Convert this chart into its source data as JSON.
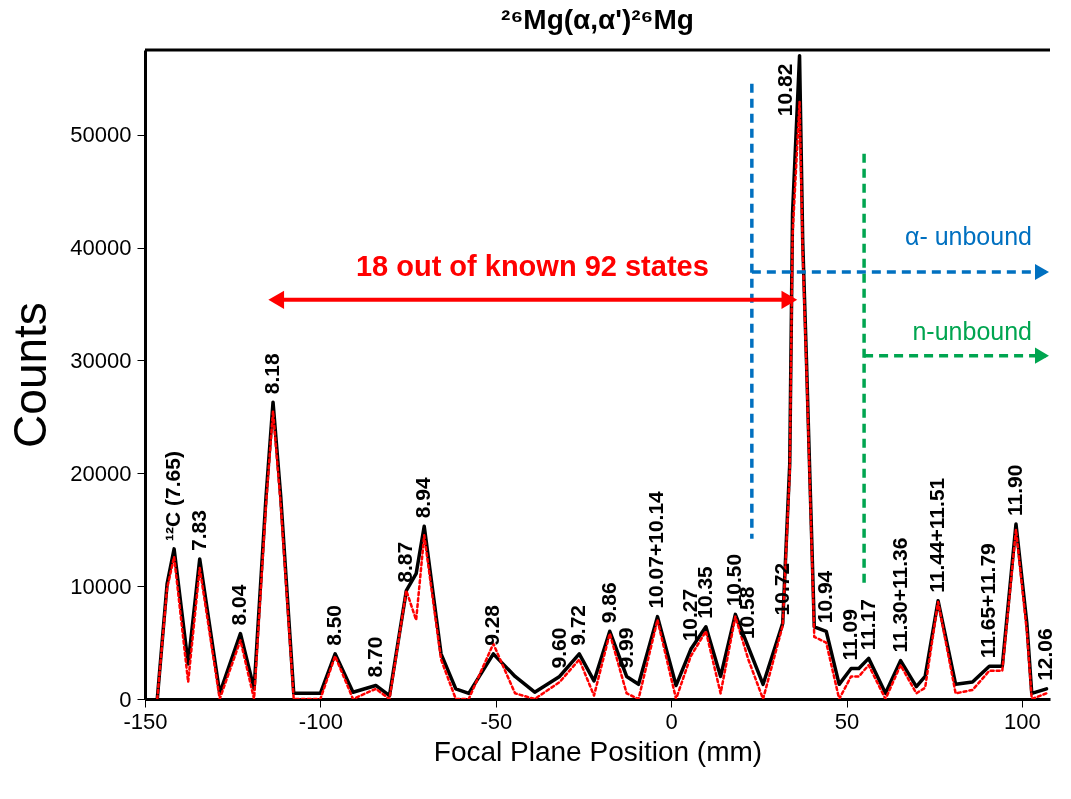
{
  "chart_data": {
    "type": "line",
    "title": "²⁶Mg(α,α')²⁶Mg",
    "xlabel": "Focal Plane Position (mm)",
    "ylabel": "Counts",
    "xlim": [
      -150,
      108
    ],
    "xticks": [
      -150,
      -100,
      -50,
      0,
      50,
      100
    ],
    "ylim": [
      0,
      57500
    ],
    "yticks": [
      0,
      10000,
      20000,
      30000,
      40000,
      50000
    ],
    "grid": false,
    "series": [
      {
        "color": "#000000",
        "line_style": "solid",
        "x": [
          -146.5,
          -143.7,
          -141.7,
          -137.7,
          -134.4,
          -128.7,
          -122.8,
          -118.9,
          -115.5,
          -113.5,
          -111.3,
          -107.6,
          -100,
          -95.8,
          -90.7,
          -84.2,
          -80.3,
          -75.5,
          -72.7,
          -70.4,
          -65.6,
          -61.4,
          -57.7,
          -50.7,
          -44.5,
          -38.9,
          -31.8,
          -26.2,
          -22,
          -17.5,
          -12.7,
          -9.3,
          -3.9,
          1.4,
          5.6,
          9.9,
          14.1,
          18.3,
          22,
          26.2,
          31.8,
          33.8,
          34.6,
          36.6,
          37.5,
          38.6,
          40.8,
          44.2,
          47.9,
          51.3,
          53.5,
          56.3,
          61.1,
          65.4,
          69.9,
          72.4,
          76.1,
          81.1,
          85.9,
          90.7,
          94.4,
          98.3,
          101.4,
          102.8,
          107
        ],
        "values": [
          0,
          10200,
          13300,
          3100,
          12400,
          500,
          5800,
          900,
          17900,
          26300,
          17900,
          500,
          500,
          4000,
          600,
          1200,
          300,
          9600,
          11100,
          15300,
          4000,
          900,
          500,
          4000,
          2000,
          600,
          2000,
          4000,
          1600,
          6000,
          2000,
          1300,
          7300,
          1200,
          4400,
          6400,
          2000,
          7500,
          4600,
          1300,
          6700,
          20800,
          43000,
          57000,
          40600,
          29700,
          6400,
          6000,
          1300,
          2700,
          2700,
          3600,
          500,
          3400,
          1100,
          2000,
          8700,
          1300,
          1500,
          2900,
          2900,
          15500,
          6700,
          500,
          900
        ]
      },
      {
        "color": "#ff0000",
        "line_style": "dotted",
        "x": [
          -146.5,
          -143.7,
          -141.7,
          -137.7,
          -134.4,
          -128.7,
          -122.8,
          -118.9,
          -115.5,
          -113.5,
          -111.3,
          -107.6,
          -100,
          -95.8,
          -90.7,
          -84.2,
          -80.3,
          -75.5,
          -72.7,
          -70.4,
          -65.6,
          -61.4,
          -57.7,
          -50.7,
          -44.5,
          -38.9,
          -31.8,
          -26.2,
          -22,
          -17.5,
          -12.7,
          -9.3,
          -3.9,
          1.4,
          5.6,
          9.9,
          14.1,
          18.3,
          22,
          26.2,
          31.8,
          33.8,
          34.6,
          36.6,
          37.5,
          38.6,
          40.8,
          44.2,
          47.9,
          51.3,
          53.5,
          56.3,
          61.1,
          65.4,
          69.9,
          72.4,
          76.1,
          81.1,
          85.9,
          90.7,
          94.4,
          98.3,
          101.4,
          102.8,
          107
        ],
        "values": [
          0,
          9800,
          12600,
          1500,
          11600,
          0,
          5200,
          0,
          17200,
          25500,
          17200,
          0,
          0,
          3800,
          0,
          900,
          0,
          9600,
          7000,
          14500,
          3500,
          0,
          0,
          4900,
          500,
          0,
          1500,
          3500,
          300,
          5800,
          500,
          0,
          7000,
          0,
          3800,
          6000,
          500,
          7300,
          3500,
          0,
          6500,
          20000,
          41000,
          52900,
          39500,
          29000,
          5500,
          5000,
          0,
          2000,
          2000,
          3000,
          0,
          3000,
          500,
          1000,
          8600,
          500,
          800,
          2500,
          2500,
          15000,
          6000,
          0,
          500
        ]
      }
    ],
    "ref_lines": [
      {
        "axis": "x",
        "value": 23,
        "label": "α- unbound",
        "color": "#0070c0",
        "line_style": "dashed"
      },
      {
        "axis": "x",
        "value": 55,
        "label": "n-unbound",
        "color": "#00a550",
        "line_style": "dashed"
      }
    ],
    "annotations": [
      "18 out of known 92 states",
      {
        "text": "¹²C (7.65)",
        "x": -141.7,
        "y": 13300
      },
      {
        "text": "7.83",
        "x": -134.4,
        "y": 12400
      },
      {
        "text": "8.04",
        "x": -122.8,
        "y": 5800
      },
      {
        "text": "8.18",
        "x": -113.5,
        "y": 26300
      },
      {
        "text": "8.50",
        "x": -95.8,
        "y": 4000
      },
      {
        "text": "8.70",
        "x": -84.2,
        "y": 1200
      },
      {
        "text": "8.87",
        "x": -75.5,
        "y": 9600
      },
      {
        "text": "8.94",
        "x": -70.4,
        "y": 15300
      },
      {
        "text": "9.28",
        "x": -50.7,
        "y": 4000
      },
      {
        "text": "9.60",
        "x": -31.8,
        "y": 2000
      },
      {
        "text": "9.72",
        "x": -26.2,
        "y": 4000
      },
      {
        "text": "9.86",
        "x": -17.5,
        "y": 6000
      },
      {
        "text": "9.99",
        "x": -12.7,
        "y": 2000
      },
      {
        "text": "10.07+10.14",
        "x": -3.9,
        "y": 7300
      },
      {
        "text": "10.27",
        "x": 5.6,
        "y": 4400
      },
      {
        "text": "10.35",
        "x": 9.9,
        "y": 6400
      },
      {
        "text": "10.50",
        "x": 18.3,
        "y": 7500
      },
      {
        "text": "10.58",
        "x": 22,
        "y": 4600
      },
      {
        "text": "10.72",
        "x": 31.8,
        "y": 6700
      },
      {
        "text": "10.82",
        "x": 36.6,
        "y": 57000
      },
      {
        "text": "10.94",
        "x": 44.2,
        "y": 6000
      },
      {
        "text": "11.09",
        "x": 51.3,
        "y": 2700
      },
      {
        "text": "11.17",
        "x": 56.3,
        "y": 3600
      },
      {
        "text": "11.30+11.36",
        "x": 65.4,
        "y": 3400
      },
      {
        "text": "11.44+11.51",
        "x": 76.1,
        "y": 8700
      },
      {
        "text": "11.65+11.79",
        "x": 90.7,
        "y": 2900
      },
      {
        "text": "11.90",
        "x": 98.3,
        "y": 15500
      },
      {
        "text": "12.06",
        "x": 107,
        "y": 900
      }
    ]
  }
}
